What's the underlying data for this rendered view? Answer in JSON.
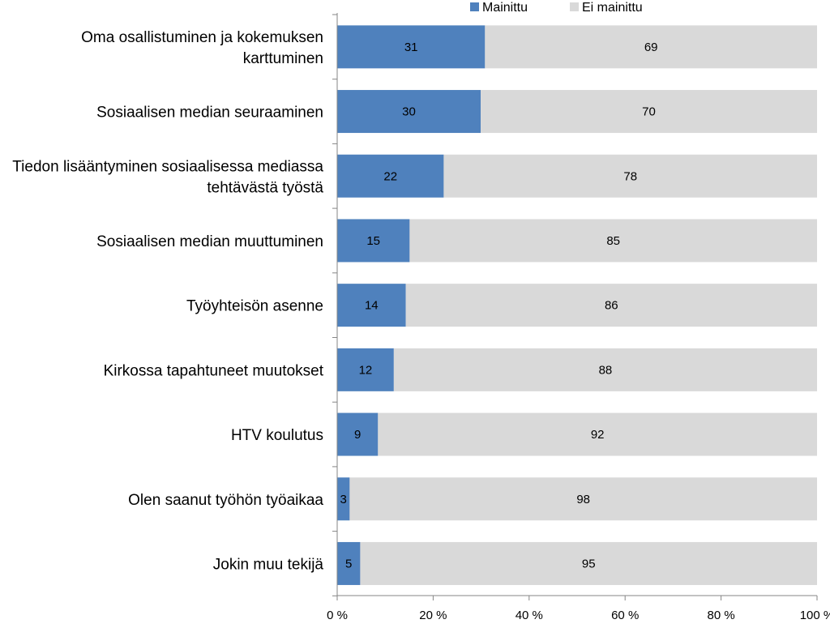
{
  "chart_data": {
    "type": "bar",
    "orientation": "horizontal",
    "stacked": "percent",
    "categories": [
      [
        "Oma osallistuminen ja kokemuksen",
        "karttuminen"
      ],
      [
        "Sosiaalisen median seuraaminen"
      ],
      [
        "Tiedon lisääntyminen sosiaalisessa mediassa",
        "tehtävästä työstä"
      ],
      [
        "Sosiaalisen median muuttuminen"
      ],
      [
        "Työyhteisön asenne"
      ],
      [
        "Kirkossa tapahtuneet muutokset"
      ],
      [
        "HTV koulutus"
      ],
      [
        "Olen saanut työhön työaikaa"
      ],
      [
        "Jokin muu tekijä"
      ]
    ],
    "series": [
      {
        "name": "Mainittu",
        "color": "#4f81bd",
        "values": [
          31,
          30,
          22,
          15,
          14,
          12,
          9,
          3,
          5
        ],
        "value_positions": [
          30.8,
          29.9,
          22.2,
          15.1,
          14.3,
          11.8,
          8.5,
          2.6,
          4.8
        ]
      },
      {
        "name": "Ei mainittu",
        "color": "#d9d9d9",
        "values": [
          69,
          70,
          78,
          85,
          86,
          88,
          92,
          98,
          95
        ],
        "value_positions": [
          69.2,
          70.1,
          77.8,
          84.9,
          85.7,
          88.2,
          91.5,
          97.4,
          95.2
        ]
      }
    ],
    "xlim": [
      0,
      100
    ],
    "xticks": [
      0,
      20,
      40,
      60,
      80,
      100
    ],
    "xtick_labels": [
      "0 %",
      "20 %",
      "40 %",
      "60 %",
      "80 %",
      "100 %"
    ],
    "grid": false,
    "legend_position": "top"
  }
}
